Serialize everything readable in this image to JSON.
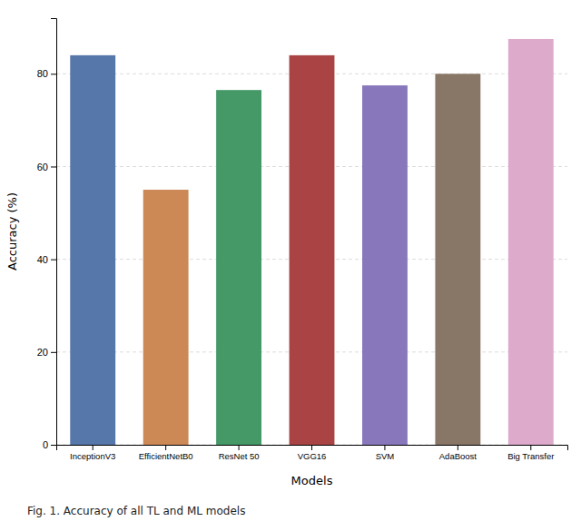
{
  "chart_data": {
    "type": "bar",
    "categories": [
      "InceptionV3",
      "EfficientNetB0",
      "ResNet 50",
      "VGG16",
      "SVM",
      "AdaBoost",
      "Big Transfer"
    ],
    "values": [
      84.0,
      55.0,
      76.5,
      84.0,
      77.5,
      80.0,
      87.5
    ],
    "colors": [
      "#5577aa",
      "#cc8855",
      "#449966",
      "#aa4444",
      "#8877bb",
      "#887766",
      "#ddaacc"
    ],
    "xlabel": "Models",
    "ylabel": "Accuracy (%)",
    "caption": "Fig. 1. Accuracy of all TL and ML models",
    "ylim": [
      0,
      92
    ],
    "yticks": [
      0,
      20,
      40,
      60,
      80
    ],
    "grid": true
  }
}
